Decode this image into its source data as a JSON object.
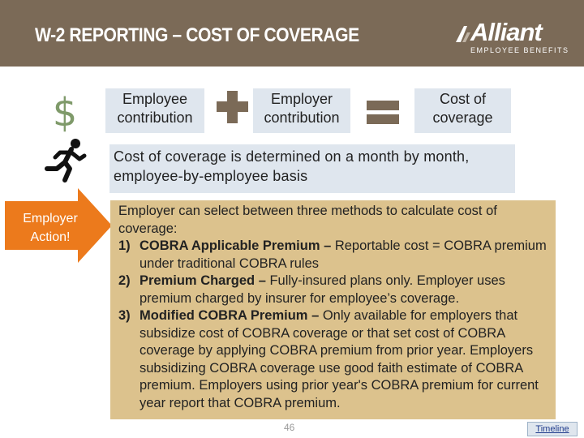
{
  "header": {
    "title": "W-2 REPORTING – COST OF COVERAGE",
    "logo_name": "Alliant",
    "logo_tagline": "EMPLOYEE BENEFITS"
  },
  "equation": {
    "dollar_symbol": "$",
    "employee_box": "Employee contribution",
    "employer_box": "Employer contribution",
    "cost_box": "Cost of coverage"
  },
  "basis_text": "Cost of coverage is determined on a month by month, employee-by-employee basis",
  "action_arrow": "Employer Action!",
  "methods": {
    "intro": "Employer can select between three methods to calculate cost of coverage:",
    "items": [
      {
        "num": "1)",
        "term": "COBRA Applicable Premium –",
        "text": " Reportable cost = COBRA premium under traditional COBRA rules"
      },
      {
        "num": "2)",
        "term": "Premium Charged –",
        "text": " Fully-insured plans only. Employer uses premium charged by insurer for employee’s coverage."
      },
      {
        "num": "3)",
        "term": "Modified COBRA Premium –",
        "text": " Only available for employers that subsidize cost of COBRA coverage or that set cost of COBRA coverage by applying COBRA premium from prior year. Employers subsidizing COBRA coverage use good faith estimate of COBRA premium. Employers using prior year's COBRA premium for  current year report that COBRA premium."
      }
    ]
  },
  "footer": {
    "page_number": "46",
    "timeline_link": "Timeline"
  },
  "colors": {
    "header_bg": "#7b6a57",
    "box_blue": "#dfe6ee",
    "method_tan": "#dcc28d",
    "arrow_orange": "#ec7a1c",
    "dollar_green": "#7f9a6a"
  }
}
